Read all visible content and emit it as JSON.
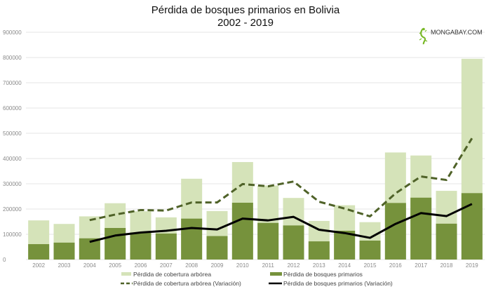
{
  "chart_data": {
    "type": "bar",
    "title": "Pérdida de bosques primarios en Bolivia",
    "subtitle": "2002 - 2019",
    "xlabel": "",
    "ylabel": "",
    "ylim": [
      0,
      900000
    ],
    "yticks": [
      0,
      100000,
      200000,
      300000,
      400000,
      500000,
      600000,
      700000,
      800000,
      900000
    ],
    "grid": true,
    "legend_placement": "bottom",
    "categories": [
      "2002",
      "2003",
      "2004",
      "2005",
      "2006",
      "2007",
      "2008",
      "2009",
      "2010",
      "2011",
      "2012",
      "2013",
      "2014",
      "2015",
      "2016",
      "2017",
      "2018",
      "2019"
    ],
    "series": [
      {
        "name": "Pérdida de cobertura arbórea",
        "type": "bar",
        "color": "#d5e3b9",
        "values": [
          155000,
          141000,
          171000,
          223000,
          191000,
          167000,
          320000,
          192000,
          386000,
          293000,
          244000,
          153000,
          215000,
          148000,
          424000,
          412000,
          272000,
          795000
        ]
      },
      {
        "name": "Pérdida de bosques primarios",
        "type": "bar",
        "color": "#76923c",
        "values": [
          61000,
          67000,
          84000,
          125000,
          107000,
          103000,
          162000,
          93000,
          225000,
          145000,
          135000,
          72000,
          114000,
          75000,
          224000,
          245000,
          142000,
          263000
        ]
      },
      {
        "name": "Pérdida de cobertura arbórea (Variación)",
        "type": "line",
        "style": "dashed",
        "color": "#4f6228",
        "values": [
          null,
          null,
          156000,
          178000,
          196000,
          194000,
          226000,
          226000,
          299000,
          290000,
          309000,
          229000,
          202000,
          171000,
          262000,
          329000,
          315000,
          480000
        ]
      },
      {
        "name": "Pérdida de bosques primarios (Variación)",
        "type": "line",
        "style": "solid",
        "color": "#000000",
        "values": [
          null,
          null,
          70000,
          95000,
          107000,
          114000,
          125000,
          119000,
          162000,
          155000,
          169000,
          118000,
          105000,
          86000,
          141000,
          184000,
          172000,
          220000
        ]
      }
    ]
  },
  "logo": {
    "text": "MONGABAY.COM",
    "icon": "lizard-icon",
    "color": "#7ab929"
  }
}
